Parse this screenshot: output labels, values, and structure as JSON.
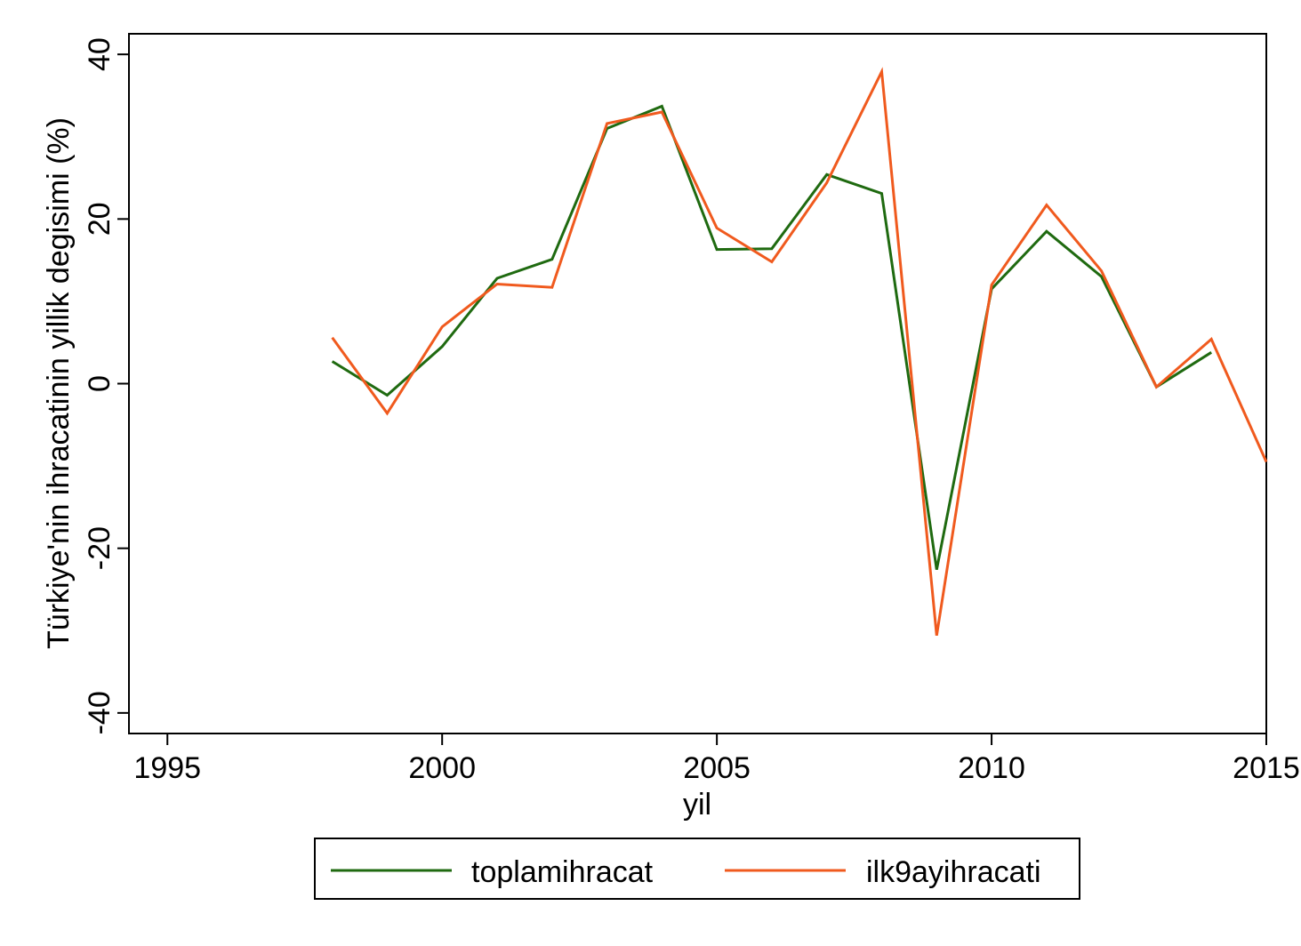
{
  "chart_data": {
    "type": "line",
    "xlabel": "yil",
    "ylabel": "Türkiye'nin ihracatinin yillik degisimi (%)",
    "xlim": [
      1994.3,
      2015.0
    ],
    "ylim": [
      -42.5,
      42.5
    ],
    "xticks": [
      1995,
      2000,
      2005,
      2010,
      2015
    ],
    "xtick_labels": [
      "1995",
      "2000",
      "2005",
      "2010",
      "2015"
    ],
    "yticks": [
      -40,
      -20,
      0,
      20,
      40
    ],
    "ytick_labels": [
      "-40",
      "-20",
      "0",
      "20",
      "40"
    ],
    "grid": false,
    "legend_position": "bottom",
    "series": [
      {
        "name": "toplamihracat",
        "color": "#1f6a10",
        "x": [
          1998,
          1999,
          2000,
          2001,
          2002,
          2003,
          2004,
          2005,
          2006,
          2007,
          2008,
          2009,
          2010,
          2011,
          2012,
          2013,
          2014
        ],
        "y": [
          2.7,
          -1.4,
          4.5,
          12.8,
          15.1,
          31.0,
          33.7,
          16.3,
          16.4,
          25.4,
          23.1,
          -22.6,
          11.5,
          18.5,
          13.0,
          -0.4,
          3.8
        ]
      },
      {
        "name": "ilk9ayihracati",
        "color": "#f05a1e",
        "x": [
          1998,
          1999,
          2000,
          2001,
          2002,
          2003,
          2004,
          2005,
          2006,
          2007,
          2008,
          2009,
          2010,
          2011,
          2012,
          2013,
          2014,
          2015
        ],
        "y": [
          5.6,
          -3.6,
          6.9,
          12.1,
          11.7,
          31.6,
          33.0,
          18.9,
          14.8,
          24.4,
          37.9,
          -30.6,
          12.0,
          21.7,
          13.7,
          -0.4,
          5.4,
          -9.5
        ]
      }
    ]
  }
}
